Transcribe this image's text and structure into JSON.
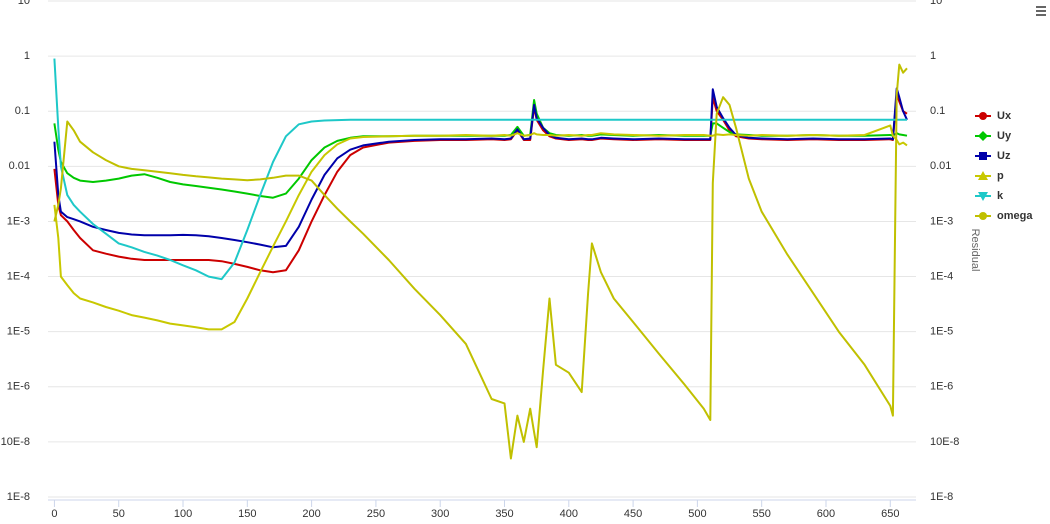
{
  "chart_data": {
    "type": "line",
    "log_scale": true,
    "grid": true,
    "legend": "right",
    "y2_title": "Residual",
    "x": [
      0,
      3,
      5,
      10,
      15,
      20,
      30,
      40,
      50,
      60,
      70,
      80,
      90,
      100,
      110,
      120,
      130,
      140,
      150,
      160,
      170,
      180,
      190,
      200,
      210,
      220,
      230,
      240,
      260,
      280,
      300,
      320,
      340,
      350,
      355,
      360,
      365,
      370,
      373,
      375,
      380,
      385,
      390,
      400,
      410,
      415,
      418,
      425,
      435,
      450,
      470,
      490,
      505,
      510,
      512,
      515,
      520,
      525,
      530,
      540,
      550,
      570,
      590,
      610,
      630,
      650,
      652,
      655,
      657,
      660,
      663
    ],
    "xlim": [
      -5,
      670
    ],
    "xticks": [
      0,
      50,
      100,
      150,
      200,
      250,
      300,
      350,
      400,
      450,
      500,
      550,
      600,
      650
    ],
    "ylim": [
      1e-08,
      10
    ],
    "yticks": [
      10,
      1,
      0.1,
      0.01,
      {
        "value": 0.001,
        "label": "1E-3"
      },
      {
        "value": 0.0001,
        "label": "1E-4"
      },
      {
        "value": 1e-05,
        "label": "1E-5"
      },
      {
        "value": 1e-06,
        "label": "1E-6"
      },
      {
        "value": 1e-07,
        "label": "10E-8"
      },
      {
        "value": 1e-08,
        "label": "1E-8"
      }
    ],
    "y2lim": [
      1e-08,
      10
    ],
    "y2ticks": [
      10,
      1,
      0.1,
      0.01,
      {
        "value": 0.001,
        "label": "1E-3"
      },
      {
        "value": 0.0001,
        "label": "1E-4"
      },
      {
        "value": 1e-05,
        "label": "1E-5"
      },
      {
        "value": 1e-06,
        "label": "1E-6"
      },
      {
        "value": 1e-07,
        "label": "10E-8"
      },
      {
        "value": 1e-08,
        "label": "1E-8"
      }
    ],
    "series": [
      {
        "name": "Ux",
        "color": "#cc0000",
        "marker": "circle",
        "values": [
          0.009,
          0.002,
          0.0013,
          0.001,
          0.0007,
          0.0005,
          0.0003,
          0.00026,
          0.00023,
          0.00021,
          0.0002,
          0.0002,
          0.0002,
          0.0002,
          0.0002,
          0.0002,
          0.00019,
          0.00017,
          0.00015,
          0.00013,
          0.00012,
          0.00013,
          0.0003,
          0.001,
          0.003,
          0.008,
          0.016,
          0.022,
          0.027,
          0.029,
          0.03,
          0.03,
          0.031,
          0.03,
          0.031,
          0.045,
          0.03,
          0.03,
          0.12,
          0.07,
          0.045,
          0.035,
          0.032,
          0.03,
          0.031,
          0.03,
          0.03,
          0.032,
          0.031,
          0.03,
          0.031,
          0.03,
          0.03,
          0.03,
          0.18,
          0.1,
          0.07,
          0.045,
          0.035,
          0.032,
          0.031,
          0.03,
          0.031,
          0.03,
          0.03,
          0.031,
          0.03,
          0.2,
          0.15,
          0.1,
          0.09
        ]
      },
      {
        "name": "Uy",
        "color": "#00c800",
        "marker": "diamond",
        "values": [
          0.06,
          0.02,
          0.012,
          0.0075,
          0.0062,
          0.0055,
          0.0052,
          0.0055,
          0.006,
          0.0068,
          0.0072,
          0.0062,
          0.0052,
          0.0047,
          0.0044,
          0.0041,
          0.0038,
          0.0035,
          0.0032,
          0.0029,
          0.0027,
          0.0032,
          0.006,
          0.013,
          0.022,
          0.029,
          0.033,
          0.035,
          0.035,
          0.036,
          0.036,
          0.036,
          0.036,
          0.036,
          0.037,
          0.052,
          0.036,
          0.037,
          0.16,
          0.09,
          0.05,
          0.04,
          0.037,
          0.036,
          0.037,
          0.036,
          0.036,
          0.038,
          0.037,
          0.036,
          0.037,
          0.036,
          0.036,
          0.036,
          0.06,
          0.06,
          0.05,
          0.042,
          0.038,
          0.037,
          0.036,
          0.036,
          0.037,
          0.036,
          0.036,
          0.037,
          0.036,
          0.04,
          0.038,
          0.037,
          0.036
        ]
      },
      {
        "name": "Uz",
        "color": "#0000aa",
        "marker": "square",
        "values": [
          0.028,
          0.003,
          0.0015,
          0.0012,
          0.0011,
          0.001,
          0.0008,
          0.0007,
          0.00062,
          0.00058,
          0.00056,
          0.00056,
          0.00056,
          0.00057,
          0.00056,
          0.00054,
          0.0005,
          0.00046,
          0.00042,
          0.00038,
          0.00034,
          0.00036,
          0.0008,
          0.0025,
          0.007,
          0.014,
          0.02,
          0.024,
          0.028,
          0.03,
          0.031,
          0.031,
          0.032,
          0.031,
          0.032,
          0.047,
          0.031,
          0.032,
          0.13,
          0.075,
          0.05,
          0.037,
          0.033,
          0.031,
          0.032,
          0.031,
          0.031,
          0.033,
          0.032,
          0.031,
          0.032,
          0.031,
          0.031,
          0.031,
          0.25,
          0.12,
          0.075,
          0.05,
          0.037,
          0.033,
          0.032,
          0.031,
          0.032,
          0.031,
          0.031,
          0.032,
          0.031,
          0.26,
          0.18,
          0.1,
          0.07
        ]
      },
      {
        "name": "p",
        "color": "#c8c800",
        "marker": "triangle",
        "values": [
          0.002,
          0.0005,
          0.0001,
          7e-05,
          5e-05,
          4e-05,
          3.4e-05,
          2.8e-05,
          2.4e-05,
          2e-05,
          1.8e-05,
          1.6e-05,
          1.4e-05,
          1.3e-05,
          1.2e-05,
          1.1e-05,
          1.1e-05,
          1.5e-05,
          4e-05,
          0.00012,
          0.00035,
          0.001,
          0.003,
          0.008,
          0.016,
          0.025,
          0.032,
          0.034,
          0.035,
          0.036,
          0.036,
          0.037,
          0.036,
          0.037,
          0.036,
          0.04,
          0.036,
          0.037,
          0.04,
          0.038,
          0.037,
          0.037,
          0.036,
          0.037,
          0.036,
          0.037,
          0.037,
          0.04,
          0.038,
          0.037,
          0.036,
          0.037,
          0.037,
          0.036,
          0.036,
          0.038,
          0.037,
          0.038,
          0.037,
          0.036,
          0.037,
          0.036,
          0.037,
          0.036,
          0.037,
          0.055,
          0.036,
          0.03,
          0.025,
          0.027,
          0.024
        ]
      },
      {
        "name": "k",
        "color": "#1ec8c8",
        "marker": "triangle-down",
        "values": [
          0.9,
          0.05,
          0.01,
          0.003,
          0.002,
          0.0015,
          0.0009,
          0.0006,
          0.0004,
          0.00034,
          0.00028,
          0.00024,
          0.0002,
          0.00016,
          0.00013,
          0.0001,
          9e-05,
          0.00018,
          0.0007,
          0.003,
          0.012,
          0.035,
          0.058,
          0.065,
          0.068,
          0.069,
          0.07,
          0.07,
          0.07,
          0.07,
          0.07,
          0.07,
          0.07,
          0.07,
          0.07,
          0.07,
          0.07,
          0.07,
          0.07,
          0.07,
          0.07,
          0.07,
          0.07,
          0.07,
          0.07,
          0.07,
          0.07,
          0.07,
          0.07,
          0.07,
          0.07,
          0.07,
          0.07,
          0.07,
          0.07,
          0.07,
          0.07,
          0.07,
          0.07,
          0.07,
          0.07,
          0.07,
          0.07,
          0.07,
          0.07,
          0.07,
          0.07,
          0.07,
          0.07,
          0.07,
          0.07
        ]
      },
      {
        "name": "omega",
        "color": "#c0c000",
        "marker": "circle",
        "values": [
          0.001,
          0.002,
          0.004,
          0.065,
          0.045,
          0.028,
          0.018,
          0.013,
          0.01,
          0.009,
          0.0085,
          0.008,
          0.0075,
          0.007,
          0.0066,
          0.0063,
          0.006,
          0.0058,
          0.0056,
          0.0058,
          0.0062,
          0.0068,
          0.0068,
          0.0055,
          0.003,
          0.0017,
          0.001,
          0.0006,
          0.0002,
          6e-05,
          2e-05,
          6e-06,
          6e-07,
          5e-07,
          5e-08,
          3e-07,
          1e-07,
          4e-07,
          1.5e-07,
          8e-08,
          2e-06,
          4e-05,
          2.5e-06,
          1.8e-06,
          8e-07,
          5e-05,
          0.0004,
          0.00012,
          4e-05,
          1.5e-05,
          4e-06,
          1.1e-06,
          4e-07,
          2.5e-07,
          0.005,
          0.09,
          0.18,
          0.13,
          0.05,
          0.006,
          0.0015,
          0.00025,
          5e-05,
          1e-05,
          2.5e-06,
          4.5e-07,
          3e-07,
          0.2,
          0.7,
          0.5,
          0.6
        ]
      }
    ]
  }
}
